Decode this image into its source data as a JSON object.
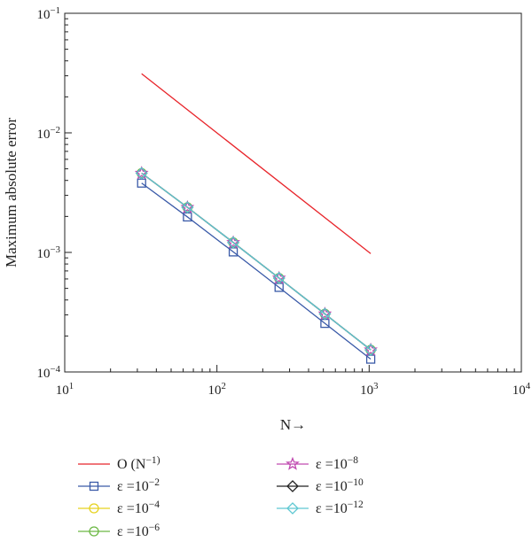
{
  "chart_data": {
    "type": "line",
    "title": "",
    "xlabel": "N→",
    "ylabel": "Maximum absolute error",
    "x_scale": "log",
    "y_scale": "log",
    "xlim": [
      10,
      10000
    ],
    "ylim": [
      0.0001,
      0.1
    ],
    "grid": false,
    "legend_position": "bottom",
    "x_ticks": [
      {
        "value": 10,
        "label": "10^1"
      },
      {
        "value": 100,
        "label": "10^2"
      },
      {
        "value": 1000,
        "label": "10^3"
      },
      {
        "value": 10000,
        "label": "10^4"
      }
    ],
    "y_ticks": [
      {
        "value": 0.0001,
        "label": "10^−4"
      },
      {
        "value": 0.001,
        "label": "10^−3"
      },
      {
        "value": 0.01,
        "label": "10^−2"
      },
      {
        "value": 0.1,
        "label": "10^−1"
      }
    ],
    "series": [
      {
        "name": "O (N^−1)",
        "color": "#e8242a",
        "marker": "none",
        "x": [
          32,
          1024
        ],
        "y": [
          0.0312,
          0.000977
        ]
      },
      {
        "name": "ε =10^−2",
        "color": "#3a5aa8",
        "marker": "square",
        "x": [
          32,
          64,
          128,
          256,
          512,
          1024
        ],
        "y": [
          0.0038,
          0.00198,
          0.00101,
          0.00051,
          0.000255,
          0.000128
        ]
      },
      {
        "name": "ε =10^−4",
        "color": "#e6d21e",
        "marker": "circle",
        "x": [
          32,
          64,
          128,
          256,
          512,
          1024
        ],
        "y": [
          0.0046,
          0.00238,
          0.00121,
          0.00061,
          0.000306,
          0.000153
        ]
      },
      {
        "name": "ε =10^−6",
        "color": "#6cb844",
        "marker": "circle",
        "x": [
          32,
          64,
          128,
          256,
          512,
          1024
        ],
        "y": [
          0.0046,
          0.00238,
          0.00121,
          0.00061,
          0.000306,
          0.000153
        ]
      },
      {
        "name": "ε =10^−8",
        "color": "#c04ab0",
        "marker": "star",
        "x": [
          32,
          64,
          128,
          256,
          512,
          1024
        ],
        "y": [
          0.0046,
          0.00238,
          0.00121,
          0.00061,
          0.000306,
          0.000153
        ]
      },
      {
        "name": "ε =10^−10",
        "color": "#222222",
        "marker": "diamond",
        "x": [
          32,
          64,
          128,
          256,
          512,
          1024
        ],
        "y": [
          0.0046,
          0.00238,
          0.00121,
          0.00061,
          0.000306,
          0.000153
        ]
      },
      {
        "name": "ε =10^−12",
        "color": "#5fc8d2",
        "marker": "diamond",
        "x": [
          32,
          64,
          128,
          256,
          512,
          1024
        ],
        "y": [
          0.0046,
          0.00238,
          0.00121,
          0.00061,
          0.000306,
          0.000153
        ]
      }
    ]
  }
}
